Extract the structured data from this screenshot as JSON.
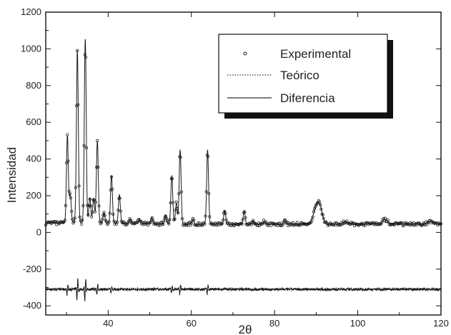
{
  "chart_data": {
    "type": "line",
    "xlabel": "2θ",
    "ylabel": "Intensidad",
    "xlim": [
      25,
      120
    ],
    "ylim": [
      -450,
      1200
    ],
    "x_ticks": [
      40,
      60,
      80,
      100,
      120
    ],
    "y_ticks": [
      -400,
      -200,
      0,
      200,
      400,
      600,
      800,
      1000,
      1200
    ],
    "grid": false,
    "legend_position": "top-right",
    "baseline": 45,
    "difference_offset": -310,
    "peaks": [
      {
        "x": 30.2,
        "y": 520
      },
      {
        "x": 30.9,
        "y": 200
      },
      {
        "x": 32.6,
        "y": 985
      },
      {
        "x": 34.5,
        "y": 1045
      },
      {
        "x": 35.6,
        "y": 180
      },
      {
        "x": 36.5,
        "y": 175
      },
      {
        "x": 37.4,
        "y": 490
      },
      {
        "x": 39.0,
        "y": 100
      },
      {
        "x": 40.8,
        "y": 305
      },
      {
        "x": 42.7,
        "y": 200
      },
      {
        "x": 45.3,
        "y": 70
      },
      {
        "x": 47.5,
        "y": 70
      },
      {
        "x": 50.5,
        "y": 80
      },
      {
        "x": 53.8,
        "y": 95
      },
      {
        "x": 55.3,
        "y": 310
      },
      {
        "x": 56.4,
        "y": 160
      },
      {
        "x": 57.3,
        "y": 450
      },
      {
        "x": 60.4,
        "y": 70
      },
      {
        "x": 63.9,
        "y": 450
      },
      {
        "x": 68.0,
        "y": 120
      },
      {
        "x": 72.7,
        "y": 120
      },
      {
        "x": 74.8,
        "y": 65
      },
      {
        "x": 77.5,
        "y": 60
      },
      {
        "x": 82.5,
        "y": 65
      },
      {
        "x": 89.8,
        "y": 110
      },
      {
        "x": 90.8,
        "y": 140
      },
      {
        "x": 97.0,
        "y": 60
      },
      {
        "x": 106.5,
        "y": 70
      },
      {
        "x": 117.5,
        "y": 60
      }
    ],
    "series": [
      {
        "name": "Experimental",
        "style": "open-circles"
      },
      {
        "name": "Teórico",
        "style": "dotted-line"
      },
      {
        "name": "Diferencia",
        "style": "solid-line"
      }
    ]
  },
  "colors": {
    "data": "#1a1a1a",
    "legend_shadow": "#111111",
    "background": "#ffffff"
  }
}
